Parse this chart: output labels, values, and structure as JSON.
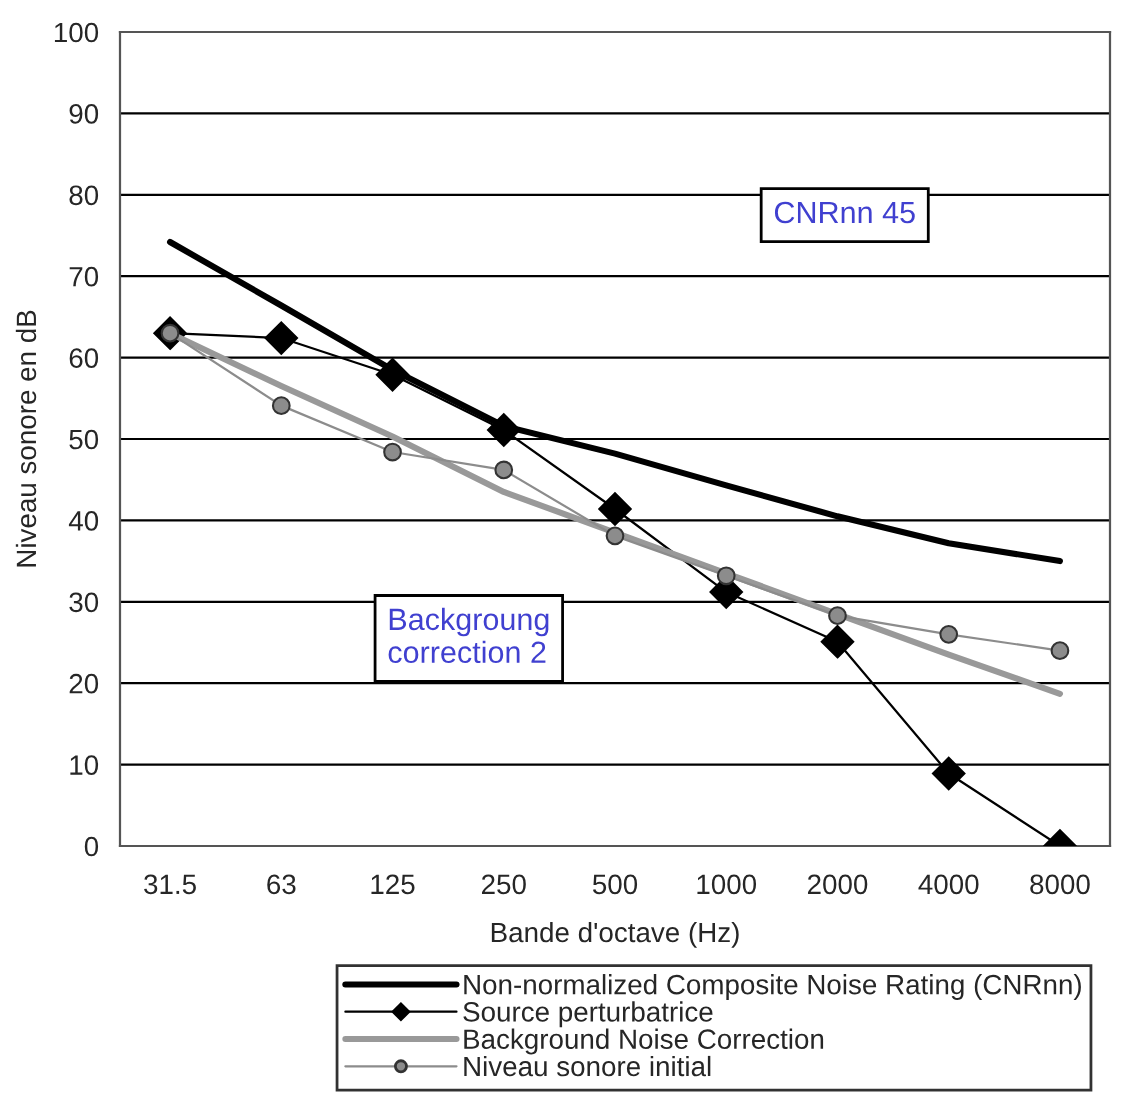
{
  "chart_data": {
    "type": "line",
    "xlabel": "Bande d'octave (Hz)",
    "ylabel": "Niveau sonore en dB",
    "categories": [
      "31.5",
      "63",
      "125",
      "250",
      "500",
      "1000",
      "2000",
      "4000",
      "8000"
    ],
    "series": [
      {
        "name": "Non-normalized Composite Noise Rating (CNRnn)",
        "color": "#000000",
        "marker": "none",
        "values": [
          74.2,
          66.4,
          58.5,
          51.6,
          48.2,
          44.3,
          40.5,
          37.2,
          35
        ]
      },
      {
        "name": "Source perturbatrice",
        "color": "#000000",
        "marker": "diamond",
        "values": [
          63,
          62.4,
          57.9,
          51.1,
          41.4,
          31.2,
          25.1,
          8.9,
          0
        ]
      },
      {
        "name": "Background Noise Correction",
        "color": "#999999",
        "marker": "none",
        "values": [
          63,
          56.5,
          50.3,
          43.5,
          38.5,
          33.5,
          28.5,
          23.5,
          18.7
        ]
      },
      {
        "name": "Niveau sonore initial",
        "color": "#8c8c8c",
        "marker": "circle",
        "values": [
          63,
          54.1,
          48.4,
          46.2,
          38.1,
          33.2,
          28.3,
          26,
          24
        ]
      }
    ],
    "ylim": [
      0,
      100
    ],
    "yticks": [
      0,
      10,
      20,
      30,
      40,
      50,
      60,
      70,
      80,
      90,
      100
    ],
    "grid": "y",
    "legend": "bottom",
    "annotations": [
      "CNRnn 45",
      "Backgroung\ncorrection 2"
    ]
  }
}
